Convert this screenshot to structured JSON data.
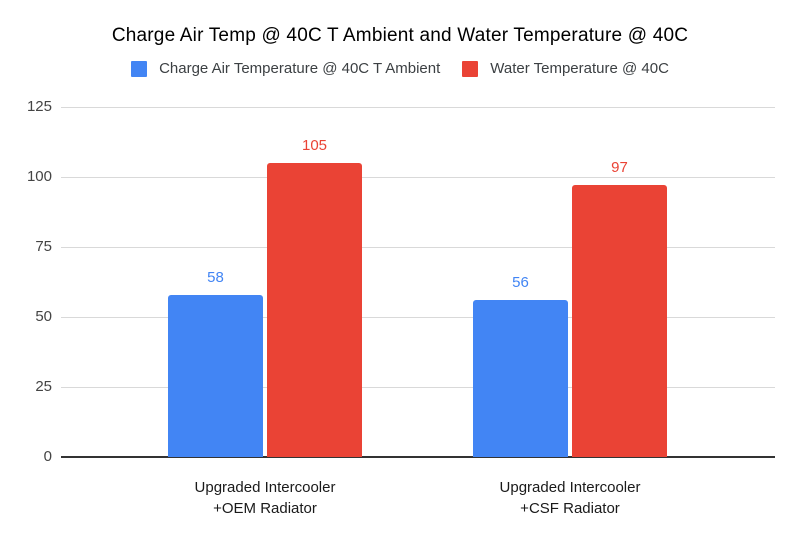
{
  "chart_data": {
    "type": "bar",
    "title": "Charge Air Temp @ 40C T Ambient and Water Temperature @ 40C",
    "categories": [
      "Upgraded Intercooler\n+OEM Radiator",
      "Upgraded Intercooler\n+CSF Radiator"
    ],
    "series": [
      {
        "name": "Charge Air Temperature @ 40C T Ambient",
        "color": "#4285F4",
        "values": [
          58,
          56
        ]
      },
      {
        "name": "Water Temperature @ 40C",
        "color": "#EA4335",
        "values": [
          105,
          97
        ]
      }
    ],
    "xlabel": "",
    "ylabel": "",
    "ylim": [
      0,
      125
    ],
    "yticks": [
      0,
      25,
      50,
      75,
      100,
      125
    ],
    "grid": true,
    "legend_position": "top",
    "data_labels": true,
    "colors": {
      "background": "#ffffff",
      "gridline": "#d9d9d9",
      "axis_line": "#333333",
      "tick_label": "#444444",
      "category_label": "#1a1a1a",
      "title": "#000000"
    }
  }
}
